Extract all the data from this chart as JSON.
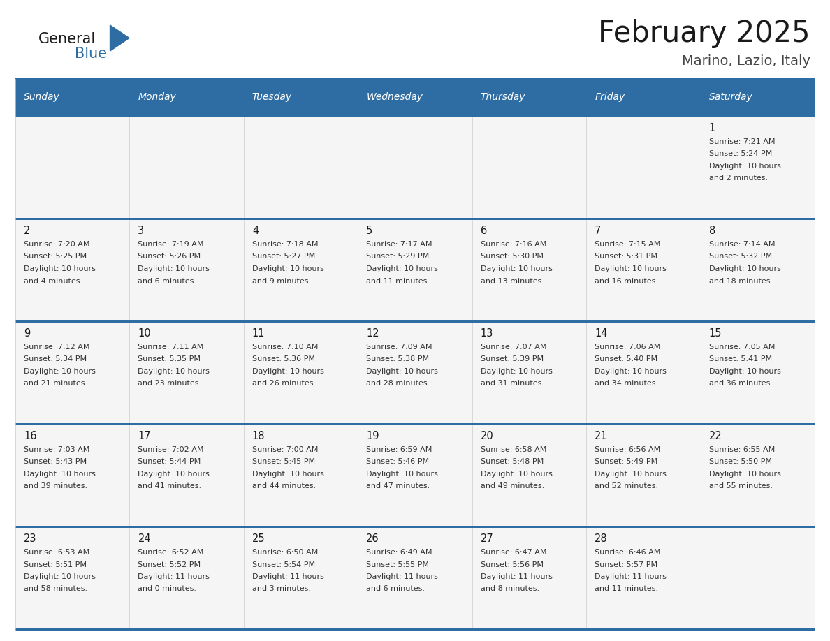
{
  "title": "February 2025",
  "subtitle": "Marino, Lazio, Italy",
  "header_bg": "#2E6DA4",
  "header_text_color": "#FFFFFF",
  "cell_bg": "#F5F5F5",
  "border_color": "#2E6DA4",
  "title_color": "#1a1a1a",
  "subtitle_color": "#444444",
  "day_num_color": "#1a1a1a",
  "info_color": "#333333",
  "day_headers": [
    "Sunday",
    "Monday",
    "Tuesday",
    "Wednesday",
    "Thursday",
    "Friday",
    "Saturday"
  ],
  "calendar": [
    [
      null,
      null,
      null,
      null,
      null,
      null,
      {
        "day": "1",
        "sunrise": "7:21 AM",
        "sunset": "5:24 PM",
        "daylight": "10 hours",
        "daylight2": "and 2 minutes."
      }
    ],
    [
      {
        "day": "2",
        "sunrise": "7:20 AM",
        "sunset": "5:25 PM",
        "daylight": "10 hours",
        "daylight2": "and 4 minutes."
      },
      {
        "day": "3",
        "sunrise": "7:19 AM",
        "sunset": "5:26 PM",
        "daylight": "10 hours",
        "daylight2": "and 6 minutes."
      },
      {
        "day": "4",
        "sunrise": "7:18 AM",
        "sunset": "5:27 PM",
        "daylight": "10 hours",
        "daylight2": "and 9 minutes."
      },
      {
        "day": "5",
        "sunrise": "7:17 AM",
        "sunset": "5:29 PM",
        "daylight": "10 hours",
        "daylight2": "and 11 minutes."
      },
      {
        "day": "6",
        "sunrise": "7:16 AM",
        "sunset": "5:30 PM",
        "daylight": "10 hours",
        "daylight2": "and 13 minutes."
      },
      {
        "day": "7",
        "sunrise": "7:15 AM",
        "sunset": "5:31 PM",
        "daylight": "10 hours",
        "daylight2": "and 16 minutes."
      },
      {
        "day": "8",
        "sunrise": "7:14 AM",
        "sunset": "5:32 PM",
        "daylight": "10 hours",
        "daylight2": "and 18 minutes."
      }
    ],
    [
      {
        "day": "9",
        "sunrise": "7:12 AM",
        "sunset": "5:34 PM",
        "daylight": "10 hours",
        "daylight2": "and 21 minutes."
      },
      {
        "day": "10",
        "sunrise": "7:11 AM",
        "sunset": "5:35 PM",
        "daylight": "10 hours",
        "daylight2": "and 23 minutes."
      },
      {
        "day": "11",
        "sunrise": "7:10 AM",
        "sunset": "5:36 PM",
        "daylight": "10 hours",
        "daylight2": "and 26 minutes."
      },
      {
        "day": "12",
        "sunrise": "7:09 AM",
        "sunset": "5:38 PM",
        "daylight": "10 hours",
        "daylight2": "and 28 minutes."
      },
      {
        "day": "13",
        "sunrise": "7:07 AM",
        "sunset": "5:39 PM",
        "daylight": "10 hours",
        "daylight2": "and 31 minutes."
      },
      {
        "day": "14",
        "sunrise": "7:06 AM",
        "sunset": "5:40 PM",
        "daylight": "10 hours",
        "daylight2": "and 34 minutes."
      },
      {
        "day": "15",
        "sunrise": "7:05 AM",
        "sunset": "5:41 PM",
        "daylight": "10 hours",
        "daylight2": "and 36 minutes."
      }
    ],
    [
      {
        "day": "16",
        "sunrise": "7:03 AM",
        "sunset": "5:43 PM",
        "daylight": "10 hours",
        "daylight2": "and 39 minutes."
      },
      {
        "day": "17",
        "sunrise": "7:02 AM",
        "sunset": "5:44 PM",
        "daylight": "10 hours",
        "daylight2": "and 41 minutes."
      },
      {
        "day": "18",
        "sunrise": "7:00 AM",
        "sunset": "5:45 PM",
        "daylight": "10 hours",
        "daylight2": "and 44 minutes."
      },
      {
        "day": "19",
        "sunrise": "6:59 AM",
        "sunset": "5:46 PM",
        "daylight": "10 hours",
        "daylight2": "and 47 minutes."
      },
      {
        "day": "20",
        "sunrise": "6:58 AM",
        "sunset": "5:48 PM",
        "daylight": "10 hours",
        "daylight2": "and 49 minutes."
      },
      {
        "day": "21",
        "sunrise": "6:56 AM",
        "sunset": "5:49 PM",
        "daylight": "10 hours",
        "daylight2": "and 52 minutes."
      },
      {
        "day": "22",
        "sunrise": "6:55 AM",
        "sunset": "5:50 PM",
        "daylight": "10 hours",
        "daylight2": "and 55 minutes."
      }
    ],
    [
      {
        "day": "23",
        "sunrise": "6:53 AM",
        "sunset": "5:51 PM",
        "daylight": "10 hours",
        "daylight2": "and 58 minutes."
      },
      {
        "day": "24",
        "sunrise": "6:52 AM",
        "sunset": "5:52 PM",
        "daylight": "11 hours",
        "daylight2": "and 0 minutes."
      },
      {
        "day": "25",
        "sunrise": "6:50 AM",
        "sunset": "5:54 PM",
        "daylight": "11 hours",
        "daylight2": "and 3 minutes."
      },
      {
        "day": "26",
        "sunrise": "6:49 AM",
        "sunset": "5:55 PM",
        "daylight": "11 hours",
        "daylight2": "and 6 minutes."
      },
      {
        "day": "27",
        "sunrise": "6:47 AM",
        "sunset": "5:56 PM",
        "daylight": "11 hours",
        "daylight2": "and 8 minutes."
      },
      {
        "day": "28",
        "sunrise": "6:46 AM",
        "sunset": "5:57 PM",
        "daylight": "11 hours",
        "daylight2": "and 11 minutes."
      },
      null
    ]
  ]
}
